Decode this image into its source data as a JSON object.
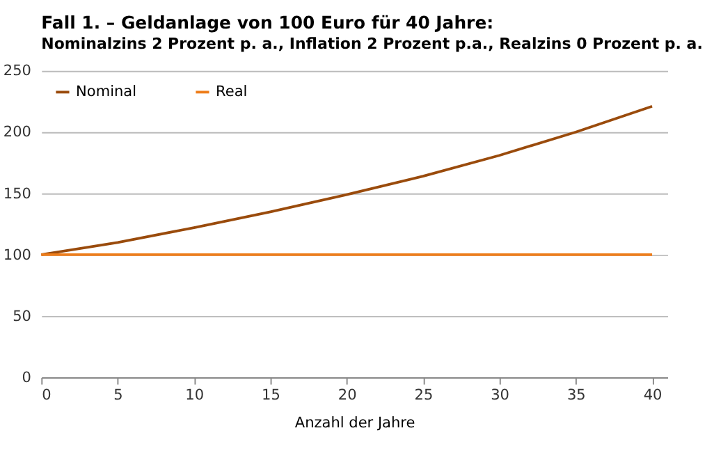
{
  "chart_data": {
    "type": "line",
    "title": "Fall 1. – Geldanlage von 100 Euro für 40 Jahre:",
    "subtitle": "Nominalzins 2 Prozent p. a., Inflation 2 Prozent p.a., Realzins 0 Prozent p. a.",
    "xlabel": "Anzahl der Jahre",
    "x": [
      0,
      5,
      10,
      15,
      20,
      25,
      30,
      35,
      40
    ],
    "series": [
      {
        "name": "Nominal",
        "color": "#9a4b0c",
        "values": [
          100,
          110,
          122,
          135,
          149,
          164,
          181,
          200,
          221
        ]
      },
      {
        "name": "Real",
        "color": "#ee7d1a",
        "values": [
          100,
          100,
          100,
          100,
          100,
          100,
          100,
          100,
          100
        ]
      }
    ],
    "xlim": [
      0,
      41
    ],
    "xticks": [
      0,
      5,
      10,
      15,
      20,
      25,
      30,
      35,
      40
    ],
    "ylim": [
      0,
      250
    ],
    "yticks": [
      0,
      50,
      100,
      150,
      200,
      250
    ],
    "grid": "y",
    "legend": "top left",
    "marker": "none",
    "line_style": "solid"
  }
}
